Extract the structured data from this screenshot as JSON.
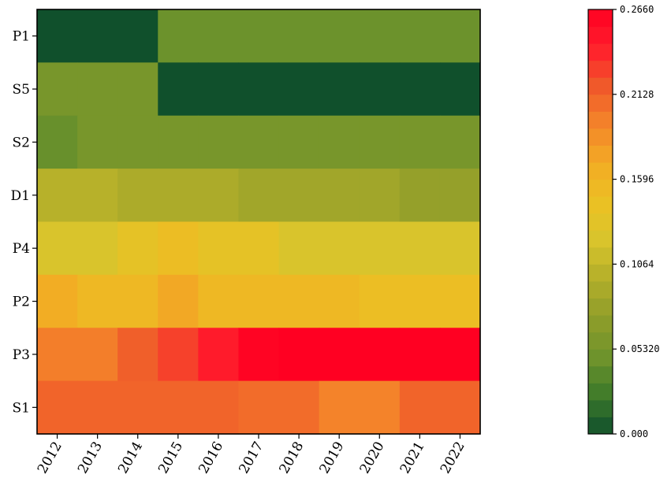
{
  "chart_data": {
    "type": "heatmap",
    "title": "",
    "xlabel": "",
    "ylabel": "",
    "x": [
      "2012",
      "2013",
      "2014",
      "2015",
      "2016",
      "2017",
      "2018",
      "2019",
      "2020",
      "2021",
      "2022"
    ],
    "y": [
      "P1",
      "S5",
      "S2",
      "D1",
      "P4",
      "P2",
      "P3",
      "S1"
    ],
    "values": [
      [
        0.0,
        0.0,
        0.0,
        0.047,
        0.047,
        0.047,
        0.047,
        0.047,
        0.047,
        0.047,
        0.047
      ],
      [
        0.055,
        0.055,
        0.055,
        0.0,
        0.0,
        0.0,
        0.0,
        0.0,
        0.0,
        0.0,
        0.0
      ],
      [
        0.045,
        0.055,
        0.055,
        0.055,
        0.055,
        0.055,
        0.055,
        0.055,
        0.055,
        0.055,
        0.055
      ],
      [
        0.1,
        0.1,
        0.093,
        0.093,
        0.093,
        0.085,
        0.085,
        0.085,
        0.085,
        0.077,
        0.077
      ],
      [
        0.122,
        0.122,
        0.138,
        0.15,
        0.138,
        0.138,
        0.122,
        0.122,
        0.122,
        0.122,
        0.122
      ],
      [
        0.168,
        0.155,
        0.155,
        0.172,
        0.155,
        0.155,
        0.155,
        0.155,
        0.148,
        0.148,
        0.148
      ],
      [
        0.198,
        0.198,
        0.215,
        0.228,
        0.245,
        0.263,
        0.266,
        0.266,
        0.266,
        0.266,
        0.266
      ],
      [
        0.212,
        0.212,
        0.212,
        0.212,
        0.212,
        0.208,
        0.208,
        0.195,
        0.195,
        0.212,
        0.212
      ]
    ],
    "vmin": 0.0,
    "vmax": 0.266,
    "colormap": [
      "#10502c",
      "#3e7a2a",
      "#6f932c",
      "#8e9d2a",
      "#b2ae2a",
      "#d8c42c",
      "#ebc124",
      "#f2ac24",
      "#f4862a",
      "#f05a2a",
      "#ff1f2c",
      "#ff0022"
    ],
    "colorbar_ticks": [
      "0.000",
      "0.05320",
      "0.1064",
      "0.1596",
      "0.2128",
      "0.2660"
    ],
    "colorbar_tick_values": [
      0.0,
      0.0532,
      0.1064,
      0.1596,
      0.2128,
      0.266
    ],
    "colorbar_bands": 25,
    "grid": false,
    "legend": "colorbar-right"
  }
}
